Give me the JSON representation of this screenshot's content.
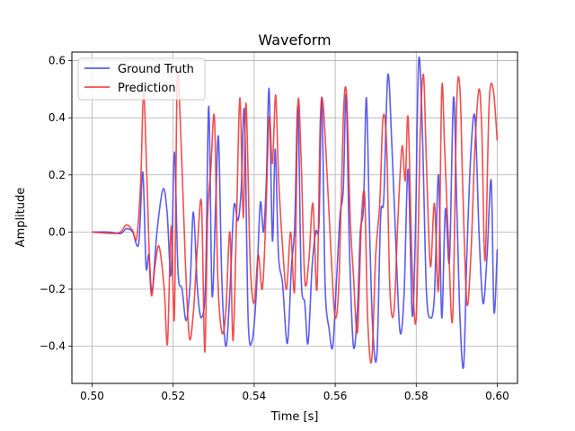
{
  "chart_data": {
    "type": "line",
    "title": "Waveform",
    "xlabel": "Time [s]",
    "ylabel": "Amplitude",
    "xlim": [
      0.495,
      0.605
    ],
    "ylim": [
      -0.53,
      0.63
    ],
    "xticks": [
      0.5,
      0.52,
      0.54,
      0.56,
      0.58,
      0.6
    ],
    "xtick_labels": [
      "0.50",
      "0.52",
      "0.54",
      "0.56",
      "0.58",
      "0.60"
    ],
    "yticks": [
      -0.4,
      -0.2,
      0.0,
      0.2,
      0.4,
      0.6
    ],
    "ytick_labels": [
      "−0.4",
      "−0.2",
      "0.0",
      "0.2",
      "0.4",
      "0.6"
    ],
    "grid": true,
    "legend_position": "top-left",
    "series": [
      {
        "name": "Ground Truth",
        "color": "#4040ee",
        "points": [
          [
            0.5,
            0.0
          ],
          [
            0.504,
            0.0
          ],
          [
            0.507,
            -0.005
          ],
          [
            0.5085,
            0.012
          ],
          [
            0.51,
            0.0
          ],
          [
            0.5115,
            -0.04
          ],
          [
            0.5125,
            0.21
          ],
          [
            0.5133,
            -0.12
          ],
          [
            0.514,
            -0.08
          ],
          [
            0.5148,
            -0.21
          ],
          [
            0.516,
            0.0
          ],
          [
            0.5175,
            0.15
          ],
          [
            0.5185,
            0.07
          ],
          [
            0.5195,
            -0.15
          ],
          [
            0.5203,
            0.28
          ],
          [
            0.5212,
            -0.14
          ],
          [
            0.5222,
            -0.2
          ],
          [
            0.5232,
            -0.31
          ],
          [
            0.5242,
            -0.18
          ],
          [
            0.525,
            0.07
          ],
          [
            0.526,
            -0.2
          ],
          [
            0.527,
            -0.3
          ],
          [
            0.528,
            -0.17
          ],
          [
            0.5288,
            0.44
          ],
          [
            0.5296,
            -0.22
          ],
          [
            0.5305,
            0.1
          ],
          [
            0.5312,
            0.33
          ],
          [
            0.532,
            -0.16
          ],
          [
            0.533,
            -0.4
          ],
          [
            0.534,
            -0.21
          ],
          [
            0.535,
            0.09
          ],
          [
            0.536,
            0.04
          ],
          [
            0.5368,
            0.15
          ],
          [
            0.5376,
            0.42
          ],
          [
            0.5385,
            -0.3
          ],
          [
            0.5395,
            -0.38
          ],
          [
            0.5405,
            -0.22
          ],
          [
            0.5415,
            0.1
          ],
          [
            0.5423,
            0.0
          ],
          [
            0.543,
            0.18
          ],
          [
            0.5437,
            0.5
          ],
          [
            0.5445,
            -0.03
          ],
          [
            0.5452,
            0.29
          ],
          [
            0.546,
            -0.08
          ],
          [
            0.547,
            -0.18
          ],
          [
            0.5482,
            -0.39
          ],
          [
            0.5492,
            -0.12
          ],
          [
            0.55,
            0.02
          ],
          [
            0.5508,
            0.44
          ],
          [
            0.5516,
            -0.16
          ],
          [
            0.5525,
            -0.25
          ],
          [
            0.5533,
            -0.39
          ],
          [
            0.5543,
            -0.12
          ],
          [
            0.5552,
            0.0
          ],
          [
            0.556,
            0.03
          ],
          [
            0.5567,
            0.47
          ],
          [
            0.5575,
            -0.18
          ],
          [
            0.5585,
            -0.34
          ],
          [
            0.5594,
            -0.4
          ],
          [
            0.5604,
            -0.15
          ],
          [
            0.5612,
            0.06
          ],
          [
            0.562,
            0.15
          ],
          [
            0.5627,
            0.48
          ],
          [
            0.5635,
            -0.05
          ],
          [
            0.5645,
            -0.4
          ],
          [
            0.5655,
            -0.27
          ],
          [
            0.5662,
            0.0
          ],
          [
            0.567,
            0.09
          ],
          [
            0.5677,
            0.47
          ],
          [
            0.5685,
            0.0
          ],
          [
            0.5693,
            -0.35
          ],
          [
            0.5703,
            -0.43
          ],
          [
            0.5712,
            0.05
          ],
          [
            0.572,
            0.12
          ],
          [
            0.573,
            0.55
          ],
          [
            0.574,
            0.3
          ],
          [
            0.575,
            -0.05
          ],
          [
            0.576,
            -0.35
          ],
          [
            0.577,
            -0.22
          ],
          [
            0.578,
            0.22
          ],
          [
            0.579,
            -0.29
          ],
          [
            0.5798,
            0.0
          ],
          [
            0.5806,
            0.6
          ],
          [
            0.5815,
            0.36
          ],
          [
            0.5825,
            -0.2
          ],
          [
            0.5835,
            -0.3
          ],
          [
            0.5845,
            -0.22
          ],
          [
            0.5855,
            0.2
          ],
          [
            0.5863,
            -0.3
          ],
          [
            0.5872,
            0.08
          ],
          [
            0.5882,
            -0.1
          ],
          [
            0.5892,
            0.47
          ],
          [
            0.59,
            0.1
          ],
          [
            0.5908,
            -0.3
          ],
          [
            0.5917,
            -0.47
          ],
          [
            0.5925,
            -0.08
          ],
          [
            0.5935,
            0.28
          ],
          [
            0.5945,
            0.4
          ],
          [
            0.5955,
            0.0
          ],
          [
            0.5965,
            -0.25
          ],
          [
            0.5975,
            -0.08
          ],
          [
            0.5985,
            0.18
          ],
          [
            0.5992,
            -0.28
          ],
          [
            0.6,
            -0.06
          ]
        ]
      },
      {
        "name": "Prediction",
        "color": "#ee3030",
        "points": [
          [
            0.5,
            0.0
          ],
          [
            0.505,
            -0.005
          ],
          [
            0.507,
            0.0
          ],
          [
            0.5085,
            0.025
          ],
          [
            0.51,
            0.005
          ],
          [
            0.511,
            -0.02
          ],
          [
            0.512,
            0.18
          ],
          [
            0.5127,
            0.49
          ],
          [
            0.5135,
            0.2
          ],
          [
            0.5145,
            -0.21
          ],
          [
            0.5155,
            -0.12
          ],
          [
            0.5165,
            -0.05
          ],
          [
            0.5178,
            -0.2
          ],
          [
            0.5186,
            -0.39
          ],
          [
            0.5195,
            0.02
          ],
          [
            0.5203,
            -0.3
          ],
          [
            0.521,
            0.53
          ],
          [
            0.522,
            0.3
          ],
          [
            0.523,
            -0.1
          ],
          [
            0.524,
            -0.37
          ],
          [
            0.525,
            -0.28
          ],
          [
            0.526,
            -0.05
          ],
          [
            0.527,
            0.1
          ],
          [
            0.5278,
            -0.42
          ],
          [
            0.5285,
            0.05
          ],
          [
            0.5293,
            0.22
          ],
          [
            0.5302,
            0.4
          ],
          [
            0.531,
            -0.15
          ],
          [
            0.532,
            -0.35
          ],
          [
            0.533,
            -0.28
          ],
          [
            0.534,
            0.0
          ],
          [
            0.5348,
            -0.38
          ],
          [
            0.5357,
            0.08
          ],
          [
            0.5365,
            0.47
          ],
          [
            0.5373,
            0.05
          ],
          [
            0.538,
            0.45
          ],
          [
            0.539,
            -0.1
          ],
          [
            0.54,
            -0.25
          ],
          [
            0.541,
            -0.08
          ],
          [
            0.542,
            -0.2
          ],
          [
            0.5428,
            0.02
          ],
          [
            0.5437,
            0.4
          ],
          [
            0.5445,
            0.24
          ],
          [
            0.5453,
            0.48
          ],
          [
            0.546,
            0.2
          ],
          [
            0.547,
            -0.05
          ],
          [
            0.548,
            -0.2
          ],
          [
            0.549,
            0.0
          ],
          [
            0.55,
            -0.2
          ],
          [
            0.5508,
            0.45
          ],
          [
            0.5516,
            0.25
          ],
          [
            0.5525,
            -0.17
          ],
          [
            0.5535,
            -0.1
          ],
          [
            0.5545,
            0.1
          ],
          [
            0.5555,
            -0.2
          ],
          [
            0.5563,
            0.38
          ],
          [
            0.557,
            0.45
          ],
          [
            0.558,
            0.2
          ],
          [
            0.559,
            -0.08
          ],
          [
            0.56,
            -0.3
          ],
          [
            0.561,
            -0.15
          ],
          [
            0.562,
            0.4
          ],
          [
            0.5628,
            0.48
          ],
          [
            0.5637,
            0.05
          ],
          [
            0.5645,
            -0.15
          ],
          [
            0.5655,
            -0.35
          ],
          [
            0.5665,
            0.05
          ],
          [
            0.5673,
            0.12
          ],
          [
            0.568,
            -0.3
          ],
          [
            0.569,
            -0.45
          ],
          [
            0.57,
            -0.08
          ],
          [
            0.571,
            0.1
          ],
          [
            0.5718,
            0.4
          ],
          [
            0.5727,
            0.3
          ],
          [
            0.5735,
            -0.2
          ],
          [
            0.5745,
            -0.28
          ],
          [
            0.5755,
            0.05
          ],
          [
            0.5765,
            0.3
          ],
          [
            0.5773,
            0.18
          ],
          [
            0.578,
            0.4
          ],
          [
            0.579,
            -0.12
          ],
          [
            0.58,
            -0.3
          ],
          [
            0.581,
            0.35
          ],
          [
            0.5818,
            0.55
          ],
          [
            0.5825,
            0.25
          ],
          [
            0.5835,
            -0.12
          ],
          [
            0.5845,
            0.1
          ],
          [
            0.5855,
            -0.2
          ],
          [
            0.5863,
            0.5
          ],
          [
            0.587,
            0.3
          ],
          [
            0.588,
            -0.05
          ],
          [
            0.589,
            -0.3
          ],
          [
            0.59,
            0.45
          ],
          [
            0.5908,
            0.5
          ],
          [
            0.5915,
            0.15
          ],
          [
            0.5925,
            -0.25
          ],
          [
            0.5935,
            -0.08
          ],
          [
            0.5945,
            0.3
          ],
          [
            0.5955,
            0.5
          ],
          [
            0.5962,
            0.35
          ],
          [
            0.597,
            -0.1
          ],
          [
            0.598,
            0.45
          ],
          [
            0.599,
            0.5
          ],
          [
            0.6,
            0.32
          ]
        ]
      }
    ]
  }
}
